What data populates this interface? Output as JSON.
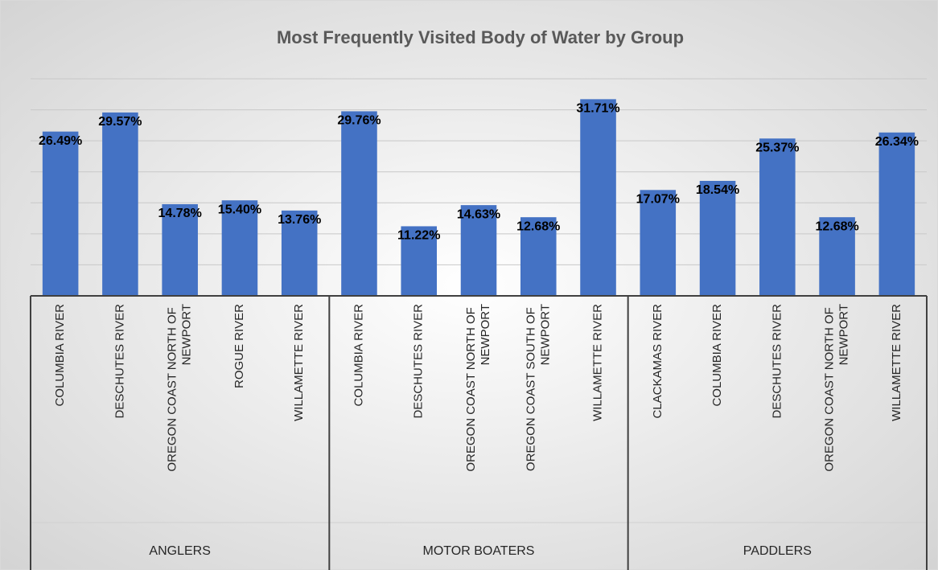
{
  "chart_data": {
    "type": "bar",
    "title": "Most Frequently Visited Body of Water by Group",
    "color": "#4472c4",
    "ylim": [
      0,
      35
    ],
    "yticks": [
      0,
      5,
      10,
      15,
      20,
      25,
      30,
      35
    ],
    "grid": true,
    "groups": [
      {
        "name": "ANGLERS",
        "categories": [
          "COLUMBIA RIVER",
          "DESCHUTES RIVER",
          "OREGON COAST NORTH OF NEWPORT",
          "ROGUE RIVER",
          "WILLAMETTE RIVER"
        ],
        "values": [
          26.49,
          29.57,
          14.78,
          15.4,
          13.76
        ],
        "value_labels": [
          "26.49%",
          "29.57%",
          "14.78%",
          "15.40%",
          "13.76%"
        ]
      },
      {
        "name": "MOTOR BOATERS",
        "categories": [
          "COLUMBIA RIVER",
          "DESCHUTES RIVER",
          "OREGON COAST NORTH OF NEWPORT",
          "OREGON COAST SOUTH OF NEWPORT",
          "WILLAMETTE RIVER"
        ],
        "values": [
          29.76,
          11.22,
          14.63,
          12.68,
          31.71
        ],
        "value_labels": [
          "29.76%",
          "11.22%",
          "14.63%",
          "12.68%",
          "31.71%"
        ]
      },
      {
        "name": "PADDLERS",
        "categories": [
          "CLACKAMAS RIVER",
          "COLUMBIA RIVER",
          "DESCHUTES RIVER",
          "OREGON COAST NORTH OF NEWPORT",
          "WILLAMETTE RIVER"
        ],
        "values": [
          17.07,
          18.54,
          25.37,
          12.68,
          26.34
        ],
        "value_labels": [
          "17.07%",
          "18.54%",
          "25.37%",
          "12.68%",
          "26.34%"
        ]
      }
    ]
  }
}
